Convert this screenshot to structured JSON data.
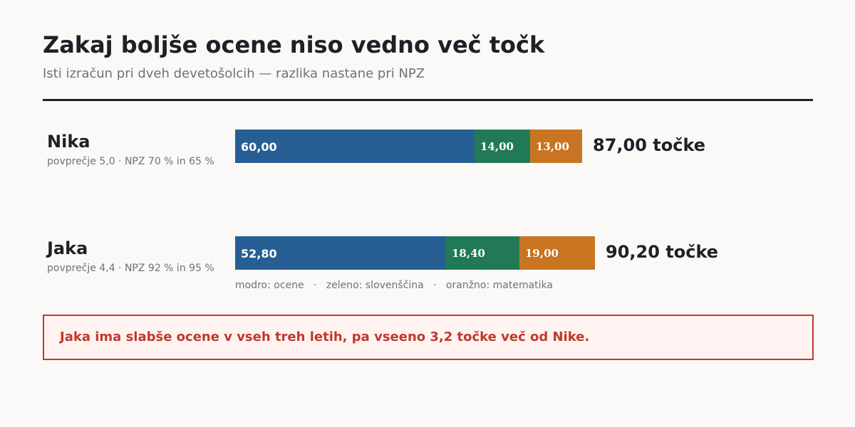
{
  "title": "Zakaj boljše ocene niso vedno več točk",
  "subtitle": "Isti izračun pri dveh devetošolcih — razlika nastane pri NPZ",
  "colors": {
    "ocene": "#275f94",
    "slovenscina": "#217a55",
    "matematika": "#c87420",
    "accent": "#c0392b"
  },
  "legend": {
    "blue": "modro: ocene",
    "green": "zeleno: slovenščina",
    "orange": "oranžno: matematika",
    "separator": "·"
  },
  "callout": "Jaka ima slabše ocene v vseh treh letih, pa vseeno 3,2 točke več od Nike.",
  "chart_data": {
    "type": "bar",
    "orientation": "horizontal",
    "stacked": true,
    "categories": [
      "Nika",
      "Jaka"
    ],
    "category_details": [
      "povprečje 5,0 · NPZ 70 % in 65 %",
      "povprečje 4,4 · NPZ 92 % in 95 %"
    ],
    "series": [
      {
        "values": [
          60.0,
          52.8
        ],
        "labels": [
          "60,00",
          "52,80"
        ],
        "color": "#275f94"
      },
      {
        "values": [
          14.0,
          18.4
        ],
        "labels": [
          "14,00",
          "18,40"
        ],
        "color": "#217a55"
      },
      {
        "values": [
          13.0,
          19.0
        ],
        "labels": [
          "13,00",
          "19,00"
        ],
        "color": "#c87420"
      }
    ],
    "totals": [
      87.0,
      90.2
    ],
    "total_labels": [
      "87,00 točke",
      "90,20 točke"
    ],
    "xlim": [
      0,
      100
    ],
    "grid": false,
    "legend_position": "bottom"
  }
}
